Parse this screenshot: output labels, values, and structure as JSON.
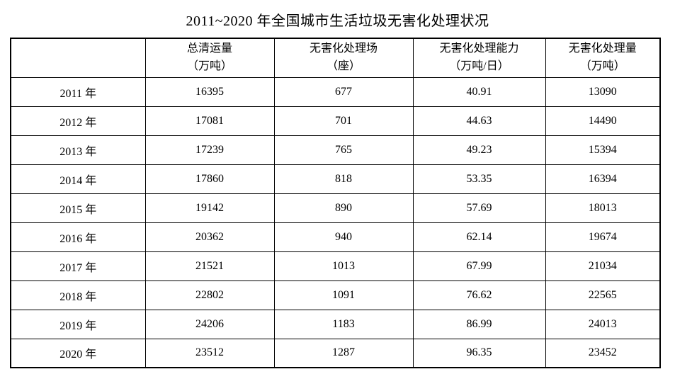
{
  "page": {
    "title": "2011~2020 年全国城市生活垃圾无害化处理状况"
  },
  "table": {
    "headers": [
      "",
      "总清运量\n（万吨）",
      "无害化处理场\n（座）",
      "无害化处理能力\n（万吨/日）",
      "无害化处理量\n（万吨）"
    ],
    "rows": [
      {
        "year": "2011 年",
        "cells": [
          "16395",
          "677",
          "40.91",
          "13090"
        ]
      },
      {
        "year": "2012 年",
        "cells": [
          "17081",
          "701",
          "44.63",
          "14490"
        ]
      },
      {
        "year": "2013 年",
        "cells": [
          "17239",
          "765",
          "49.23",
          "15394"
        ]
      },
      {
        "year": "2014 年",
        "cells": [
          "17860",
          "818",
          "53.35",
          "16394"
        ]
      },
      {
        "year": "2015 年",
        "cells": [
          "19142",
          "890",
          "57.69",
          "18013"
        ]
      },
      {
        "year": "2016 年",
        "cells": [
          "20362",
          "940",
          "62.14",
          "19674"
        ]
      },
      {
        "year": "2017 年",
        "cells": [
          "21521",
          "1013",
          "67.99",
          "21034"
        ]
      },
      {
        "year": "2018 年",
        "cells": [
          "22802",
          "1091",
          "76.62",
          "22565"
        ]
      },
      {
        "year": "2019 年",
        "cells": [
          "24206",
          "1183",
          "86.99",
          "24013"
        ]
      },
      {
        "year": "2020 年",
        "cells": [
          "23512",
          "1287",
          "96.35",
          "23452"
        ]
      }
    ]
  },
  "chart_data": {
    "type": "table",
    "title": "2011~2020 年全国城市生活垃圾无害化处理状况",
    "columns": [
      "",
      "总清运量（万吨）",
      "无害化处理场（座）",
      "无害化处理能力（万吨/日）",
      "无害化处理量（万吨）"
    ],
    "rows": [
      [
        "2011 年",
        16395,
        677,
        40.91,
        13090
      ],
      [
        "2012 年",
        17081,
        701,
        44.63,
        14490
      ],
      [
        "2013 年",
        17239,
        765,
        49.23,
        15394
      ],
      [
        "2014 年",
        17860,
        818,
        53.35,
        16394
      ],
      [
        "2015 年",
        19142,
        890,
        57.69,
        18013
      ],
      [
        "2016 年",
        20362,
        940,
        62.14,
        19674
      ],
      [
        "2017 年",
        21521,
        1013,
        67.99,
        21034
      ],
      [
        "2018 年",
        22802,
        1091,
        76.62,
        22565
      ],
      [
        "2019 年",
        24206,
        1183,
        86.99,
        24013
      ],
      [
        "2020 年",
        23512,
        1287,
        96.35,
        23452
      ]
    ]
  }
}
